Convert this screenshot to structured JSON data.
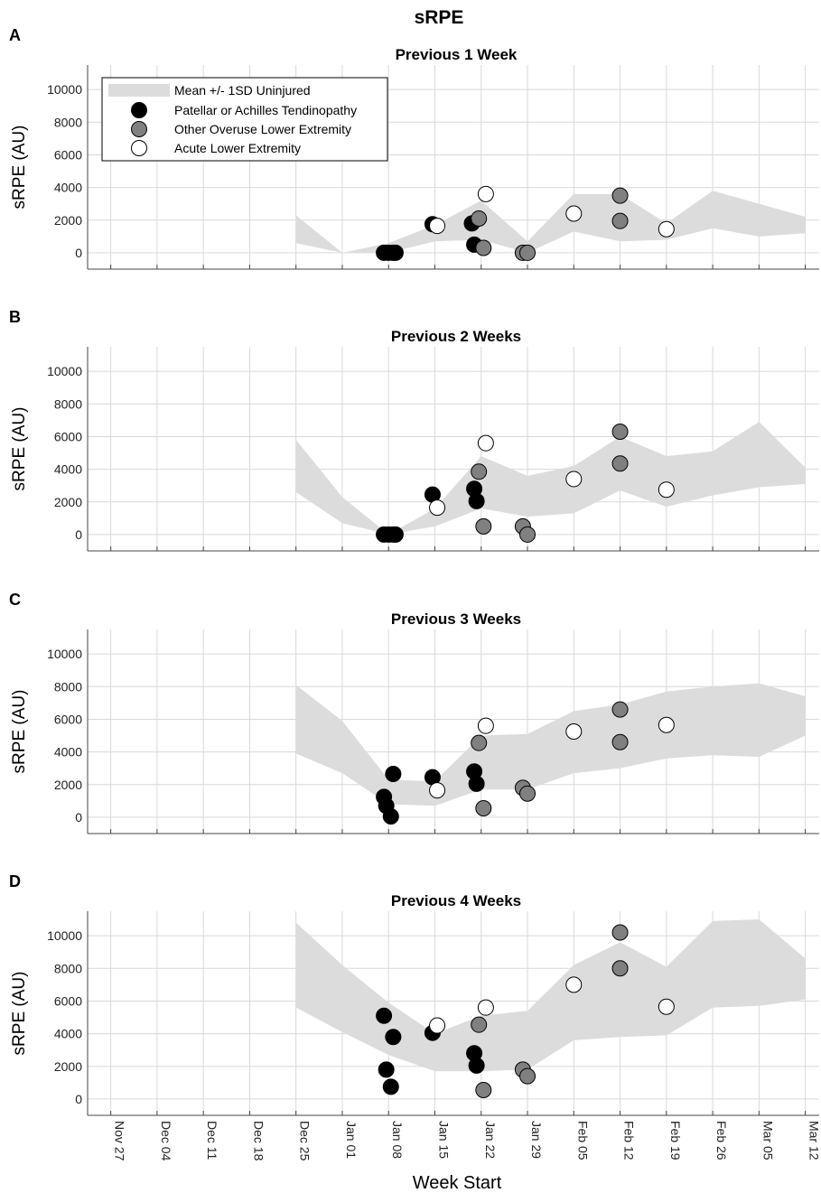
{
  "figure_title": "sRPE",
  "x_axis": {
    "label": "Week Start",
    "ticks": [
      "Nov 27",
      "Dec 04",
      "Dec 11",
      "Dec 18",
      "Dec 25",
      "Jan 01",
      "Jan 08",
      "Jan 15",
      "Jan 22",
      "Jan 29",
      "Feb 05",
      "Feb 12",
      "Feb 19",
      "Feb 26",
      "Mar 05",
      "Mar 12"
    ]
  },
  "legend": {
    "band": "Mean +/- 1SD Uninjured",
    "tendinopathy": "Patellar or Achilles Tendinopathy",
    "overuse": "Other Overuse Lower Extremity",
    "acute": "Acute Lower Extremity"
  },
  "colors": {
    "band": "#dcdcdc",
    "tendinopathy": "#000000",
    "overuse": "#808080",
    "acute": "#ffffff"
  },
  "chart_data": [
    {
      "type": "scatter",
      "letter": "A",
      "title": "Previous 1 Week",
      "ylabel": "sRPE (AU)",
      "ylim": [
        -1000,
        11500
      ],
      "yticks": [
        0,
        2000,
        4000,
        6000,
        8000,
        10000
      ],
      "band_upper": [
        [
          4,
          2300
        ],
        [
          5,
          0
        ],
        [
          6,
          600
        ],
        [
          7,
          1700
        ],
        [
          8,
          3200
        ],
        [
          9,
          700
        ],
        [
          10,
          3600
        ],
        [
          11,
          3600
        ],
        [
          12,
          1800
        ],
        [
          13,
          3800
        ],
        [
          14,
          3000
        ],
        [
          15,
          2200
        ]
      ],
      "band_lower": [
        [
          4,
          600
        ],
        [
          5,
          0
        ],
        [
          6,
          0
        ],
        [
          7,
          700
        ],
        [
          8,
          800
        ],
        [
          9,
          0
        ],
        [
          10,
          1300
        ],
        [
          11,
          700
        ],
        [
          12,
          800
        ],
        [
          13,
          1500
        ],
        [
          14,
          1000
        ],
        [
          15,
          1200
        ]
      ],
      "points": [
        {
          "series": "tendinopathy",
          "x": 5.9,
          "y": 0
        },
        {
          "series": "tendinopathy",
          "x": 6.0,
          "y": 0
        },
        {
          "series": "tendinopathy",
          "x": 6.1,
          "y": 0
        },
        {
          "series": "tendinopathy",
          "x": 6.15,
          "y": 0
        },
        {
          "series": "tendinopathy",
          "x": 6.95,
          "y": 1750
        },
        {
          "series": "tendinopathy",
          "x": 7.8,
          "y": 1800
        },
        {
          "series": "tendinopathy",
          "x": 7.85,
          "y": 500
        },
        {
          "series": "overuse",
          "x": 7.95,
          "y": 2100
        },
        {
          "series": "overuse",
          "x": 8.05,
          "y": 300
        },
        {
          "series": "overuse",
          "x": 8.9,
          "y": 0
        },
        {
          "series": "overuse",
          "x": 9.0,
          "y": 0
        },
        {
          "series": "overuse",
          "x": 11.0,
          "y": 3500
        },
        {
          "series": "overuse",
          "x": 11.0,
          "y": 1950
        },
        {
          "series": "acute",
          "x": 7.05,
          "y": 1650
        },
        {
          "series": "acute",
          "x": 8.1,
          "y": 3600
        },
        {
          "series": "acute",
          "x": 10.0,
          "y": 2400
        },
        {
          "series": "acute",
          "x": 12.0,
          "y": 1450
        }
      ]
    },
    {
      "type": "scatter",
      "letter": "B",
      "title": "Previous 2 Weeks",
      "ylabel": "sRPE (AU)",
      "ylim": [
        -1000,
        11500
      ],
      "yticks": [
        0,
        2000,
        4000,
        6000,
        8000,
        10000
      ],
      "band_upper": [
        [
          4,
          5800
        ],
        [
          5,
          2300
        ],
        [
          6,
          0
        ],
        [
          7,
          1600
        ],
        [
          8,
          4800
        ],
        [
          9,
          3600
        ],
        [
          10,
          4200
        ],
        [
          11,
          6000
        ],
        [
          12,
          4800
        ],
        [
          13,
          5100
        ],
        [
          14,
          6900
        ],
        [
          15,
          4100
        ]
      ],
      "band_lower": [
        [
          4,
          2600
        ],
        [
          5,
          700
        ],
        [
          6,
          0
        ],
        [
          7,
          500
        ],
        [
          8,
          1600
        ],
        [
          9,
          1100
        ],
        [
          10,
          1300
        ],
        [
          11,
          2700
        ],
        [
          12,
          1700
        ],
        [
          13,
          2400
        ],
        [
          14,
          2900
        ],
        [
          15,
          3100
        ]
      ],
      "points": [
        {
          "series": "tendinopathy",
          "x": 5.9,
          "y": 0
        },
        {
          "series": "tendinopathy",
          "x": 6.0,
          "y": 0
        },
        {
          "series": "tendinopathy",
          "x": 6.1,
          "y": 0
        },
        {
          "series": "tendinopathy",
          "x": 6.15,
          "y": 0
        },
        {
          "series": "tendinopathy",
          "x": 6.95,
          "y": 2450
        },
        {
          "series": "tendinopathy",
          "x": 7.85,
          "y": 2800
        },
        {
          "series": "tendinopathy",
          "x": 7.9,
          "y": 2050
        },
        {
          "series": "overuse",
          "x": 7.95,
          "y": 3850
        },
        {
          "series": "overuse",
          "x": 8.05,
          "y": 500
        },
        {
          "series": "overuse",
          "x": 8.9,
          "y": 500
        },
        {
          "series": "overuse",
          "x": 9.0,
          "y": 0
        },
        {
          "series": "overuse",
          "x": 11.0,
          "y": 6300
        },
        {
          "series": "overuse",
          "x": 11.0,
          "y": 4350
        },
        {
          "series": "acute",
          "x": 7.05,
          "y": 1650
        },
        {
          "series": "acute",
          "x": 8.1,
          "y": 5600
        },
        {
          "series": "acute",
          "x": 10.0,
          "y": 3400
        },
        {
          "series": "acute",
          "x": 12.0,
          "y": 2750
        }
      ]
    },
    {
      "type": "scatter",
      "letter": "C",
      "title": "Previous 3 Weeks",
      "ylabel": "sRPE (AU)",
      "ylim": [
        -1000,
        11500
      ],
      "yticks": [
        0,
        2000,
        4000,
        6000,
        8000,
        10000
      ],
      "band_upper": [
        [
          4,
          8100
        ],
        [
          5,
          5900
        ],
        [
          6,
          2300
        ],
        [
          7,
          2200
        ],
        [
          8,
          5000
        ],
        [
          9,
          5100
        ],
        [
          10,
          6500
        ],
        [
          11,
          6900
        ],
        [
          12,
          7700
        ],
        [
          13,
          8000
        ],
        [
          14,
          8200
        ],
        [
          15,
          7400
        ]
      ],
      "band_lower": [
        [
          4,
          3900
        ],
        [
          5,
          2700
        ],
        [
          6,
          800
        ],
        [
          7,
          700
        ],
        [
          8,
          1700
        ],
        [
          9,
          1700
        ],
        [
          10,
          2700
        ],
        [
          11,
          3000
        ],
        [
          12,
          3600
        ],
        [
          13,
          3800
        ],
        [
          14,
          3700
        ],
        [
          15,
          5000
        ]
      ],
      "points": [
        {
          "series": "tendinopathy",
          "x": 5.9,
          "y": 1250
        },
        {
          "series": "tendinopathy",
          "x": 5.95,
          "y": 700
        },
        {
          "series": "tendinopathy",
          "x": 6.05,
          "y": 50
        },
        {
          "series": "tendinopathy",
          "x": 6.1,
          "y": 2650
        },
        {
          "series": "tendinopathy",
          "x": 6.95,
          "y": 2450
        },
        {
          "series": "tendinopathy",
          "x": 7.85,
          "y": 2800
        },
        {
          "series": "tendinopathy",
          "x": 7.9,
          "y": 2050
        },
        {
          "series": "overuse",
          "x": 7.95,
          "y": 4550
        },
        {
          "series": "overuse",
          "x": 8.05,
          "y": 550
        },
        {
          "series": "overuse",
          "x": 8.9,
          "y": 1800
        },
        {
          "series": "overuse",
          "x": 9.0,
          "y": 1450
        },
        {
          "series": "overuse",
          "x": 11.0,
          "y": 6600
        },
        {
          "series": "overuse",
          "x": 11.0,
          "y": 4600
        },
        {
          "series": "acute",
          "x": 7.05,
          "y": 1650
        },
        {
          "series": "acute",
          "x": 8.1,
          "y": 5600
        },
        {
          "series": "acute",
          "x": 10.0,
          "y": 5250
        },
        {
          "series": "acute",
          "x": 12.0,
          "y": 5650
        }
      ]
    },
    {
      "type": "scatter",
      "letter": "D",
      "title": "Previous 4 Weeks",
      "ylabel": "sRPE (AU)",
      "ylim": [
        -1000,
        11500
      ],
      "yticks": [
        0,
        2000,
        4000,
        6000,
        8000,
        10000
      ],
      "band_upper": [
        [
          4,
          10800
        ],
        [
          5,
          8200
        ],
        [
          6,
          5900
        ],
        [
          7,
          4000
        ],
        [
          8,
          5100
        ],
        [
          9,
          5400
        ],
        [
          10,
          8200
        ],
        [
          11,
          9600
        ],
        [
          12,
          8100
        ],
        [
          13,
          10900
        ],
        [
          14,
          11000
        ],
        [
          15,
          8600
        ]
      ],
      "band_lower": [
        [
          4,
          5600
        ],
        [
          5,
          4100
        ],
        [
          6,
          2700
        ],
        [
          7,
          1700
        ],
        [
          8,
          1700
        ],
        [
          9,
          1800
        ],
        [
          10,
          3600
        ],
        [
          11,
          3800
        ],
        [
          12,
          3900
        ],
        [
          13,
          5600
        ],
        [
          14,
          5700
        ],
        [
          15,
          6100
        ]
      ],
      "points": [
        {
          "series": "tendinopathy",
          "x": 5.9,
          "y": 5100
        },
        {
          "series": "tendinopathy",
          "x": 5.95,
          "y": 1800
        },
        {
          "series": "tendinopathy",
          "x": 6.05,
          "y": 750
        },
        {
          "series": "tendinopathy",
          "x": 6.1,
          "y": 3800
        },
        {
          "series": "tendinopathy",
          "x": 6.95,
          "y": 4050
        },
        {
          "series": "tendinopathy",
          "x": 7.85,
          "y": 2800
        },
        {
          "series": "tendinopathy",
          "x": 7.9,
          "y": 2050
        },
        {
          "series": "overuse",
          "x": 7.95,
          "y": 4550
        },
        {
          "series": "overuse",
          "x": 8.05,
          "y": 550
        },
        {
          "series": "overuse",
          "x": 8.9,
          "y": 1800
        },
        {
          "series": "overuse",
          "x": 9.0,
          "y": 1400
        },
        {
          "series": "overuse",
          "x": 11.0,
          "y": 10200
        },
        {
          "series": "overuse",
          "x": 11.0,
          "y": 8000
        },
        {
          "series": "acute",
          "x": 7.05,
          "y": 4500
        },
        {
          "series": "acute",
          "x": 8.1,
          "y": 5600
        },
        {
          "series": "acute",
          "x": 10.0,
          "y": 7000
        },
        {
          "series": "acute",
          "x": 12.0,
          "y": 5650
        }
      ]
    }
  ]
}
